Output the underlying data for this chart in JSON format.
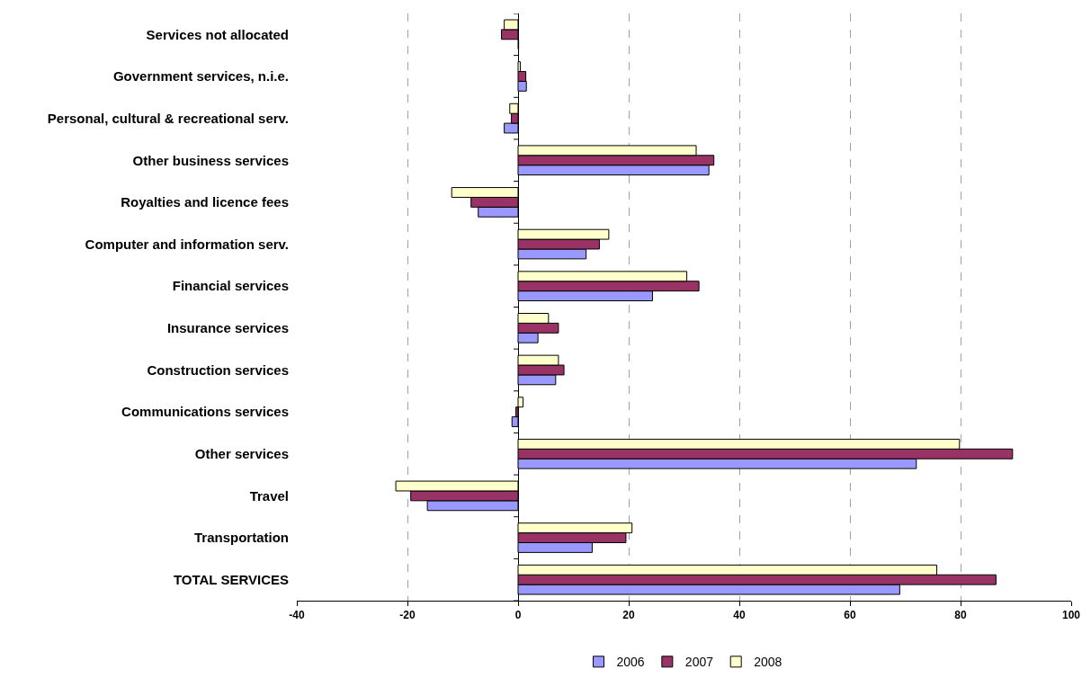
{
  "chart_data": {
    "type": "bar",
    "orientation": "horizontal",
    "categories": [
      "Services not allocated",
      "Government services, n.i.e.",
      "Personal, cultural & recreational serv.",
      "Other business services",
      "Royalties and licence fees",
      "Computer and information serv.",
      "Financial services",
      "Insurance services",
      "Construction services",
      "Communications services",
      "Other services",
      "Travel",
      "Transportation",
      "TOTAL SERVICES"
    ],
    "series": [
      {
        "name": "2006",
        "color": "#9999ff",
        "values": [
          0.1,
          1.5,
          -2.5,
          34.5,
          -7.2,
          12.3,
          24.3,
          3.6,
          6.8,
          -1.1,
          72.0,
          -16.4,
          13.4,
          69.0
        ]
      },
      {
        "name": "2007",
        "color": "#993366",
        "values": [
          -3.0,
          1.4,
          -1.2,
          35.4,
          -8.5,
          14.7,
          32.7,
          7.3,
          8.3,
          -0.4,
          89.4,
          -19.4,
          19.5,
          86.4
        ]
      },
      {
        "name": "2008",
        "color": "#ffffcc",
        "values": [
          -2.5,
          0.4,
          -1.5,
          32.2,
          -12.0,
          16.4,
          30.5,
          5.5,
          7.3,
          0.9,
          79.8,
          -22.1,
          20.6,
          75.7
        ]
      }
    ],
    "xlim": [
      -40,
      100
    ],
    "xticks": [
      -40,
      -20,
      0,
      20,
      40,
      60,
      80,
      100
    ],
    "grid": "x",
    "legend": "bottom"
  }
}
